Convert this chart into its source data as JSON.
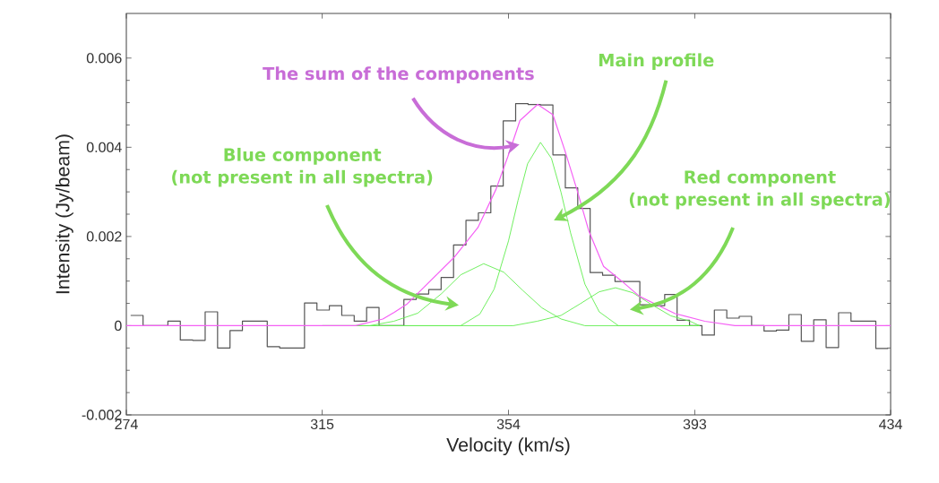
{
  "chart_data": {
    "type": "line",
    "xlabel": "Velocity (km/s)",
    "ylabel": "Intensity (Jy/beam)",
    "xlim": [
      274,
      434
    ],
    "ylim": [
      -0.002,
      0.007
    ],
    "xticks": [
      {
        "value": 274,
        "label": "274"
      },
      {
        "value": 315,
        "label": "315"
      },
      {
        "value": 354,
        "label": "354"
      },
      {
        "value": 393,
        "label": "393"
      },
      {
        "value": 434,
        "label": "434"
      }
    ],
    "yticks": [
      {
        "value": -0.002,
        "label": "-0.002"
      },
      {
        "value": 0,
        "label": "0"
      },
      {
        "value": 0.002,
        "label": "0.002"
      },
      {
        "value": 0.004,
        "label": "0.004"
      },
      {
        "value": 0.006,
        "label": "0.006"
      }
    ],
    "grid": false,
    "marker": "none",
    "series": [
      {
        "type": "histogram",
        "color": "#555555",
        "bins": [
          274.9,
          277.5,
          280.1,
          282.7,
          285.3,
          287.9,
          290.5,
          293.1,
          295.7,
          298.3,
          300.9,
          303.5,
          306.1,
          308.7,
          311.3,
          313.9,
          316.5,
          319.1,
          321.7,
          324.3,
          326.9,
          329.5,
          332.1,
          334.7,
          337.3,
          339.9,
          342.5,
          345.1,
          347.7,
          350.3,
          352.9,
          355.5,
          358.1,
          360.7,
          363.3,
          365.9,
          368.5,
          371.1,
          373.7,
          376.3,
          378.9,
          381.5,
          384.1,
          386.7,
          389.3,
          391.9,
          394.5,
          397.1,
          399.7,
          402.3,
          404.9,
          407.5,
          410.1,
          412.7,
          415.3,
          417.9,
          420.5,
          423.1,
          425.7,
          428.3,
          430.9,
          433.5
        ],
        "values": [
          0.00023,
          0.0,
          0.0,
          0.0001,
          -0.00032,
          -0.00033,
          0.00031,
          -0.0005,
          -0.00011,
          0.0001,
          0.0001,
          -0.00047,
          -0.0005,
          -0.0005,
          0.00051,
          0.00035,
          0.00045,
          0.00023,
          0.0001,
          0.00041,
          0.0,
          0.0,
          0.00059,
          0.00071,
          0.00081,
          0.00108,
          0.00181,
          0.00236,
          0.00253,
          0.00313,
          0.00459,
          0.00498,
          0.00496,
          0.00495,
          0.00383,
          0.00309,
          0.00263,
          0.00119,
          0.00113,
          0.00099,
          0.00099,
          0.00047,
          0.00045,
          0.0007,
          0.00012,
          0.0,
          -0.00021,
          0.00035,
          0.00017,
          0.00021,
          0.0,
          -0.00012,
          -0.0001,
          0.00025,
          -0.00035,
          0.00013,
          -0.00049,
          0.00029,
          0.0001,
          0.0001,
          -0.00051
        ]
      },
      {
        "color": "#66ee55",
        "x": [
          315,
          340,
          344,
          348,
          351,
          354,
          356,
          358,
          360.7,
          363,
          365,
          367,
          370,
          373,
          377,
          381,
          394
        ],
        "values": [
          0,
          0,
          0,
          0.00026,
          0.00082,
          0.0019,
          0.00281,
          0.00363,
          0.00411,
          0.00375,
          0.00299,
          0.00208,
          0.00093,
          0.00031,
          0,
          0,
          0
        ]
      },
      {
        "color": "#66ee55",
        "x": [
          315,
          325,
          330,
          335,
          340,
          344,
          348.8,
          353,
          357,
          361,
          365,
          370,
          380,
          394
        ],
        "values": [
          0,
          0,
          0.0001,
          0.00028,
          0.00072,
          0.00114,
          0.00139,
          0.0012,
          0.00079,
          0.0004,
          0.00015,
          0,
          0,
          0
        ]
      },
      {
        "color": "#66ee55",
        "x": [
          315,
          355,
          360,
          365,
          369,
          373,
          376.4,
          380,
          384,
          388,
          392,
          394
        ],
        "values": [
          0,
          0,
          0.0001,
          0.00023,
          0.00049,
          0.00076,
          0.00085,
          0.00074,
          0.00047,
          0.00022,
          0.0001,
          0
        ]
      },
      {
        "color": "#f560f5",
        "x": [
          274,
          322,
          327.7,
          330.1,
          332.7,
          336.3,
          342.6,
          347.6,
          351.4,
          353.9,
          356.4,
          360.1,
          363.3,
          365.8,
          368.3,
          370.8,
          373.9,
          377.7,
          381.4,
          385.2,
          388.9,
          395.1,
          401.4,
          434
        ],
        "values": [
          0,
          0,
          0.00015,
          0.0003,
          0.00048,
          0.00086,
          0.00153,
          0.0022,
          0.00306,
          0.0038,
          0.0046,
          0.00496,
          0.00473,
          0.00393,
          0.00306,
          0.00213,
          0.00133,
          0.001,
          0.00066,
          0.00046,
          0.00027,
          0.0001,
          0,
          0
        ]
      }
    ],
    "annotations": [
      "The sum of the components",
      "Main profile",
      "Blue component",
      "(not present in all spectra)",
      "Red component",
      "(not present in all spectra)"
    ]
  }
}
